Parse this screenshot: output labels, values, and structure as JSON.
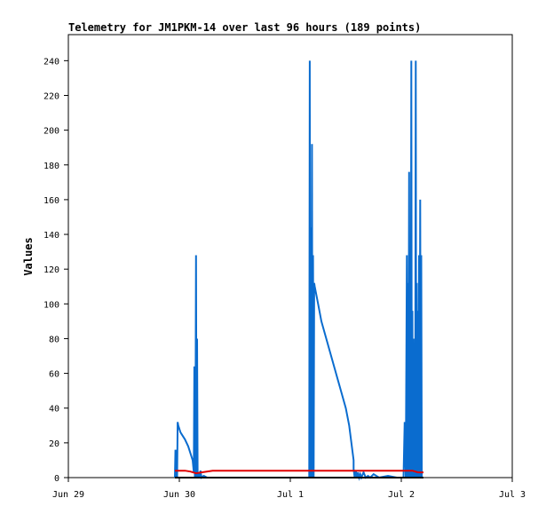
{
  "chart_data": {
    "type": "line",
    "title": "Telemetry for JM1PKM-14 over last 96 hours (189 points)",
    "xlabel": "",
    "ylabel": "Values",
    "x_ticks": [
      "Jun 29",
      "Jun 30",
      "Jul 1",
      "Jul 2",
      "Jul 3"
    ],
    "x_range_days": [
      0,
      4
    ],
    "y_ticks": [
      0,
      20,
      40,
      60,
      80,
      100,
      120,
      140,
      160,
      180,
      200,
      220,
      240
    ],
    "ylim": [
      0,
      255
    ],
    "grid": false,
    "colors": {
      "blue": "#0a6ccf",
      "red": "#e00000",
      "black": "#000000"
    },
    "series": [
      {
        "color": "#0a6ccf",
        "x": [
          0.96,
          0.965,
          0.97,
          0.975,
          0.98,
          0.985,
          0.99,
          1.01,
          1.05,
          1.08,
          1.12,
          1.13,
          1.135,
          1.14,
          1.145,
          1.15,
          1.155,
          1.16,
          1.165,
          1.17,
          1.175,
          1.18,
          1.19,
          1.2,
          1.22,
          1.25,
          1.29,
          2.17,
          2.175,
          2.18,
          2.185,
          2.19,
          2.195,
          2.2,
          2.205,
          2.21,
          2.215,
          2.22,
          2.25,
          2.28,
          2.5,
          2.53,
          2.55,
          2.57,
          2.57,
          2.58,
          2.59,
          2.6,
          2.61,
          2.62,
          2.63,
          2.64,
          2.66,
          2.68,
          2.7,
          2.72,
          2.75,
          2.8,
          2.88,
          2.96,
          2.99,
          3.02,
          3.03,
          3.04,
          3.05,
          3.055,
          3.06,
          3.065,
          3.07,
          3.075,
          3.08,
          3.085,
          3.09,
          3.095,
          3.1,
          3.105,
          3.11,
          3.115,
          3.12,
          3.125,
          3.13,
          3.135,
          3.14,
          3.145,
          3.15,
          3.155,
          3.16,
          3.165,
          3.17,
          3.175,
          3.18,
          3.185
        ],
        "values": [
          0,
          16,
          0,
          16,
          0,
          32,
          30,
          26,
          22,
          18,
          10,
          3,
          64,
          0,
          16,
          128,
          0,
          80,
          2,
          0,
          3,
          0,
          4,
          0,
          1,
          0,
          0,
          0,
          240,
          0,
          144,
          0,
          192,
          0,
          128,
          0,
          112,
          110,
          100,
          90,
          40,
          30,
          20,
          10,
          5,
          0,
          4,
          0,
          3,
          0,
          2,
          0,
          3,
          0,
          1,
          0,
          2,
          0,
          1,
          0,
          0,
          0,
          32,
          0,
          128,
          0,
          112,
          0,
          176,
          0,
          120,
          0,
          240,
          0,
          96,
          0,
          80,
          0,
          64,
          0,
          240,
          0,
          112,
          0,
          96,
          0,
          128,
          0,
          160,
          0,
          128,
          0
        ]
      },
      {
        "color": "#e00000",
        "x": [
          0.96,
          1.05,
          1.1,
          1.15,
          1.2,
          1.3,
          1.5,
          2.0,
          2.5,
          3.0,
          3.1,
          3.15,
          3.2
        ],
        "values": [
          4,
          4,
          3.5,
          2.5,
          3,
          4,
          4,
          4,
          4,
          4,
          4,
          3,
          3
        ]
      },
      {
        "color": "#000000",
        "x": [
          0.96,
          3.2
        ],
        "values": [
          0,
          0
        ]
      }
    ]
  }
}
